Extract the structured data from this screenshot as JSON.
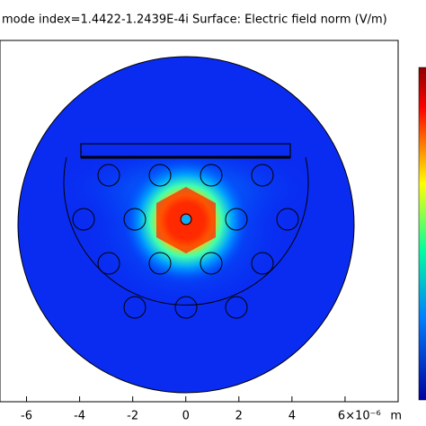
{
  "chart_data": {
    "type": "surface",
    "title": "mode index=1.4422-1.2439E-4i Surface: Electric field norm (V/m)",
    "x_label": "m",
    "xlim": [
      -7,
      8
    ],
    "xticks": [
      -6,
      -4,
      -2,
      0,
      2,
      4,
      {
        "value": 6,
        "label": "6×10⁻⁶"
      }
    ]
  }
}
